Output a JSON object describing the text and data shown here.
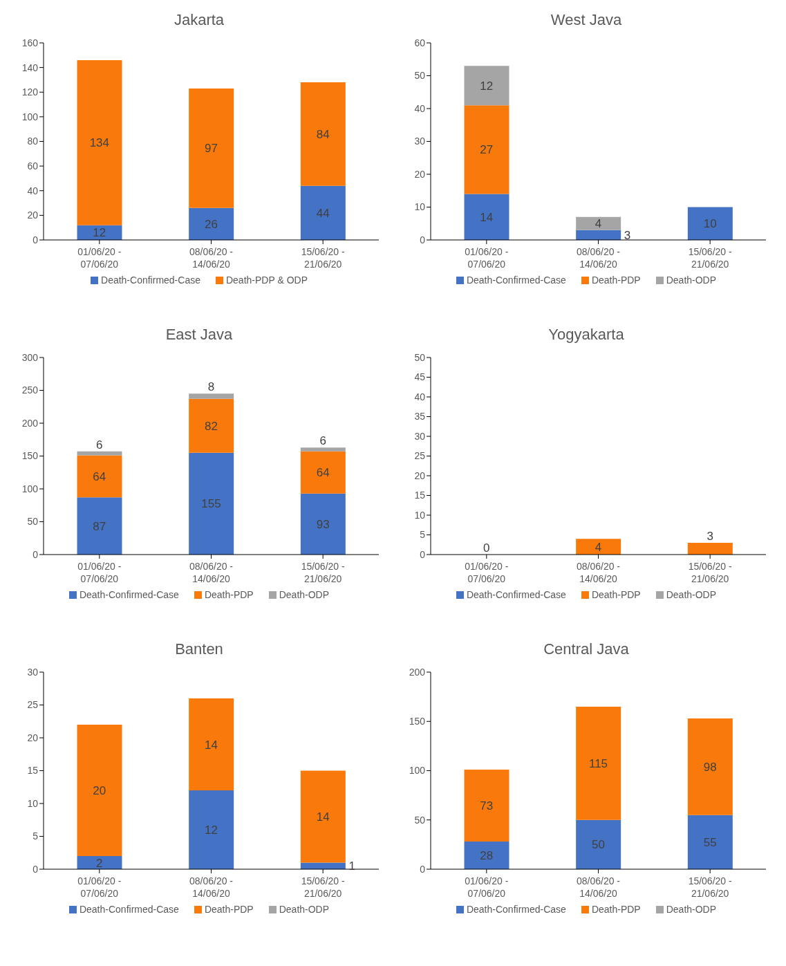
{
  "chart_data": [
    {
      "type": "bar",
      "title": "Jakarta",
      "stacked": true,
      "legend": "bottom",
      "categories": [
        "01/06/20 - 07/06/20",
        "08/06/20 - 14/06/20",
        "15/06/20 - 21/06/20"
      ],
      "ylim": [
        0,
        160
      ],
      "yticks": [
        0,
        20,
        40,
        60,
        80,
        100,
        120,
        140,
        160
      ],
      "series": [
        {
          "name": "Death-Confirmed-Case",
          "color": "#4472c4",
          "values": [
            12,
            26,
            44
          ],
          "value_labels": [
            "12",
            "26",
            "44"
          ]
        },
        {
          "name": "Death-PDP & ODP",
          "color": "#f97a0a",
          "values": [
            134,
            97,
            84
          ],
          "value_labels": [
            "134",
            "97",
            "84"
          ]
        }
      ]
    },
    {
      "type": "bar",
      "title": "West Java",
      "stacked": true,
      "legend": "bottom",
      "categories": [
        "01/06/20 - 07/06/20",
        "08/06/20 - 14/06/20",
        "15/06/20 - 21/06/20"
      ],
      "ylim": [
        0,
        60
      ],
      "yticks": [
        0,
        10,
        20,
        30,
        40,
        50,
        60
      ],
      "series": [
        {
          "name": "Death-Confirmed-Case",
          "color": "#4472c4",
          "values": [
            14,
            3,
            10
          ],
          "value_labels": [
            "14",
            "3",
            "10"
          ]
        },
        {
          "name": "Death-PDP",
          "color": "#f97a0a",
          "values": [
            27,
            0,
            0
          ],
          "value_labels": [
            "27",
            null,
            null
          ]
        },
        {
          "name": "Death-ODP",
          "color": "#a5a5a5",
          "values": [
            12,
            4,
            0
          ],
          "value_labels": [
            "12",
            "4",
            null
          ]
        }
      ]
    },
    {
      "type": "bar",
      "title": "East Java",
      "stacked": true,
      "legend": "bottom",
      "categories": [
        "01/06/20 - 07/06/20",
        "08/06/20 - 14/06/20",
        "15/06/20 - 21/06/20"
      ],
      "ylim": [
        0,
        300
      ],
      "yticks": [
        0,
        50,
        100,
        150,
        200,
        250,
        300
      ],
      "series": [
        {
          "name": "Death-Confirmed-Case",
          "color": "#4472c4",
          "values": [
            87,
            155,
            93
          ],
          "value_labels": [
            "87",
            "155",
            "93"
          ]
        },
        {
          "name": "Death-PDP",
          "color": "#f97a0a",
          "values": [
            64,
            82,
            64
          ],
          "value_labels": [
            "64",
            "82",
            "64"
          ]
        },
        {
          "name": "Death-ODP",
          "color": "#a5a5a5",
          "values": [
            6,
            8,
            6
          ],
          "value_labels": [
            "6",
            "8",
            "6"
          ]
        }
      ]
    },
    {
      "type": "bar",
      "title": "Yogyakarta",
      "stacked": true,
      "legend": "bottom",
      "categories": [
        "01/06/20 - 07/06/20",
        "08/06/20 - 14/06/20",
        "15/06/20 - 21/06/20"
      ],
      "ylim": [
        0,
        50
      ],
      "yticks": [
        0,
        5,
        10,
        15,
        20,
        25,
        30,
        35,
        40,
        45,
        50
      ],
      "series": [
        {
          "name": "Death-Confirmed-Case",
          "color": "#4472c4",
          "values": [
            0,
            0,
            0
          ],
          "value_labels": [
            "0",
            null,
            null
          ]
        },
        {
          "name": "Death-PDP",
          "color": "#f97a0a",
          "values": [
            0,
            4,
            3
          ],
          "value_labels": [
            null,
            "4",
            "3"
          ]
        },
        {
          "name": "Death-ODP",
          "color": "#a5a5a5",
          "values": [
            0,
            0,
            0
          ],
          "value_labels": [
            null,
            null,
            null
          ]
        }
      ]
    },
    {
      "type": "bar",
      "title": "Banten",
      "stacked": true,
      "legend": "bottom",
      "categories": [
        "01/06/20 - 07/06/20",
        "08/06/20 - 14/06/20",
        "15/06/20 - 21/06/20"
      ],
      "ylim": [
        0,
        30
      ],
      "yticks": [
        0,
        5,
        10,
        15,
        20,
        25,
        30
      ],
      "series": [
        {
          "name": "Death-Confirmed-Case",
          "color": "#4472c4",
          "values": [
            2,
            12,
            1
          ],
          "value_labels": [
            "2",
            "12",
            "1"
          ]
        },
        {
          "name": "Death-PDP",
          "color": "#f97a0a",
          "values": [
            20,
            14,
            14
          ],
          "value_labels": [
            "20",
            "14",
            "14"
          ]
        },
        {
          "name": "Death-ODP",
          "color": "#a5a5a5",
          "values": [
            0,
            0,
            0
          ],
          "value_labels": [
            null,
            null,
            null
          ]
        }
      ]
    },
    {
      "type": "bar",
      "title": "Central Java",
      "stacked": true,
      "legend": "bottom",
      "categories": [
        "01/06/20 - 07/06/20",
        "08/06/20 - 14/06/20",
        "15/06/20 - 21/06/20"
      ],
      "ylim": [
        0,
        200
      ],
      "yticks": [
        0,
        50,
        100,
        150,
        200
      ],
      "series": [
        {
          "name": "Death-Confirmed-Case",
          "color": "#4472c4",
          "values": [
            28,
            50,
            55
          ],
          "value_labels": [
            "28",
            "50",
            "55"
          ]
        },
        {
          "name": "Death-PDP",
          "color": "#f97a0a",
          "values": [
            73,
            115,
            98
          ],
          "value_labels": [
            "73",
            "115",
            "98"
          ]
        },
        {
          "name": "Death-ODP",
          "color": "#a5a5a5",
          "values": [
            0,
            0,
            0
          ],
          "value_labels": [
            null,
            null,
            null
          ]
        }
      ]
    }
  ]
}
